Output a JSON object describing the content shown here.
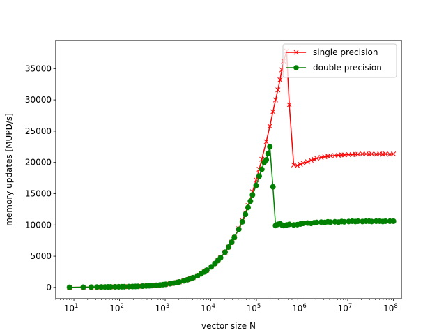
{
  "chart_data": {
    "type": "line",
    "xlabel": "vector size N",
    "ylabel": "memory updates [MUPD/s]",
    "xscale": "log",
    "xlim": [
      4,
      150000000
    ],
    "ylim": [
      -1800,
      39500
    ],
    "xticks": [
      {
        "value": 10,
        "base": "10",
        "exp": "1"
      },
      {
        "value": 100,
        "base": "10",
        "exp": "2"
      },
      {
        "value": 1000,
        "base": "10",
        "exp": "3"
      },
      {
        "value": 10000,
        "base": "10",
        "exp": "4"
      },
      {
        "value": 100000,
        "base": "10",
        "exp": "5"
      },
      {
        "value": 1000000,
        "base": "10",
        "exp": "6"
      },
      {
        "value": 10000000,
        "base": "10",
        "exp": "7"
      },
      {
        "value": 100000000,
        "base": "10",
        "exp": "8"
      }
    ],
    "yticks": [
      {
        "value": 0,
        "label": "0"
      },
      {
        "value": 5000,
        "label": "5000"
      },
      {
        "value": 10000,
        "label": "10000"
      },
      {
        "value": 15000,
        "label": "15000"
      },
      {
        "value": 20000,
        "label": "20000"
      },
      {
        "value": 25000,
        "label": "25000"
      },
      {
        "value": 30000,
        "label": "30000"
      },
      {
        "value": 35000,
        "label": "35000"
      }
    ],
    "legend_position": "top-right",
    "grid": false,
    "series": [
      {
        "name": "single precision",
        "color": "#ff0000",
        "marker": "x",
        "x": [
          8,
          16,
          24,
          32,
          40,
          48,
          56,
          64,
          80,
          96,
          112,
          128,
          160,
          192,
          224,
          256,
          320,
          384,
          448,
          512,
          640,
          768,
          896,
          1024,
          1280,
          1536,
          1792,
          2048,
          2560,
          3072,
          3584,
          4096,
          5120,
          6144,
          7168,
          8192,
          10240,
          12288,
          14336,
          16384,
          20480,
          24576,
          28672,
          32768,
          40960,
          49152,
          57344,
          65536,
          81920,
          98304,
          114688,
          131072,
          163840,
          196608,
          229376,
          262144,
          294912,
          327680,
          360448,
          393216,
          458752,
          524288,
          655360,
          786432,
          917504,
          1048576,
          1310720,
          1572864,
          1835008,
          2097152,
          2621440,
          3145728,
          3670016,
          4194304,
          5242880,
          6291456,
          7340032,
          8388608,
          10485760,
          12582912,
          14680064,
          16777216,
          20971520,
          25165824,
          29360128,
          33554432,
          41943040,
          50331648,
          58720256,
          67108864,
          83886080,
          100663296
        ],
        "y": [
          20,
          40,
          55,
          65,
          75,
          82,
          88,
          92,
          100,
          108,
          116,
          122,
          138,
          152,
          166,
          180,
          210,
          240,
          268,
          296,
          350,
          402,
          452,
          500,
          600,
          696,
          790,
          880,
          1060,
          1230,
          1400,
          1560,
          1880,
          2180,
          2480,
          2760,
          3300,
          3820,
          4300,
          4760,
          5640,
          6460,
          7240,
          8000,
          9400,
          10700,
          11900,
          13100,
          15300,
          17200,
          18900,
          20500,
          23300,
          25800,
          28100,
          30000,
          31600,
          33200,
          34800,
          36200,
          37800,
          29200,
          19600,
          19500,
          19700,
          19900,
          20100,
          20350,
          20500,
          20650,
          20800,
          20900,
          21000,
          21050,
          21100,
          21150,
          21200,
          21200,
          21250,
          21250,
          21300,
          21300,
          21350,
          21350,
          21300,
          21350,
          21300,
          21350,
          21300,
          21350,
          21300,
          21350
        ]
      },
      {
        "name": "double precision",
        "color": "#008000",
        "marker": "o",
        "x": [
          8,
          16,
          24,
          32,
          40,
          48,
          56,
          64,
          80,
          96,
          112,
          128,
          160,
          192,
          224,
          256,
          320,
          384,
          448,
          512,
          640,
          768,
          896,
          1024,
          1280,
          1536,
          1792,
          2048,
          2560,
          3072,
          3584,
          4096,
          5120,
          6144,
          7168,
          8192,
          10240,
          12288,
          14336,
          16384,
          20480,
          24576,
          28672,
          32768,
          40960,
          49152,
          57344,
          65536,
          73728,
          81920,
          98304,
          114688,
          131072,
          147456,
          163840,
          180224,
          196608,
          229376,
          262144,
          294912,
          327680,
          360448,
          393216,
          458752,
          524288,
          655360,
          786432,
          917504,
          1048576,
          1310720,
          1572864,
          1835008,
          2097152,
          2621440,
          3145728,
          3670016,
          4194304,
          5242880,
          6291456,
          7340032,
          8388608,
          10485760,
          12582912,
          14680064,
          16777216,
          20971520,
          25165824,
          29360128,
          33554432,
          41943040,
          50331648,
          58720256,
          67108864,
          83886080,
          100663296
        ],
        "y": [
          20,
          40,
          55,
          65,
          75,
          82,
          88,
          92,
          100,
          108,
          116,
          122,
          138,
          152,
          166,
          180,
          210,
          240,
          268,
          296,
          350,
          402,
          452,
          500,
          600,
          696,
          790,
          880,
          1060,
          1230,
          1400,
          1560,
          1880,
          2180,
          2480,
          2760,
          3300,
          3820,
          4300,
          4760,
          5640,
          6460,
          7240,
          8000,
          9300,
          10500,
          11700,
          12800,
          13800,
          14800,
          16300,
          17800,
          18900,
          20000,
          20400,
          21400,
          22500,
          16100,
          9900,
          10100,
          10200,
          10000,
          9900,
          10000,
          10100,
          10000,
          10050,
          10150,
          10250,
          10300,
          10250,
          10350,
          10400,
          10450,
          10400,
          10500,
          10450,
          10500,
          10450,
          10550,
          10500,
          10550,
          10600,
          10550,
          10600,
          10550,
          10600,
          10600,
          10550,
          10600,
          10600,
          10550,
          10600,
          10600,
          10600
        ]
      }
    ]
  }
}
